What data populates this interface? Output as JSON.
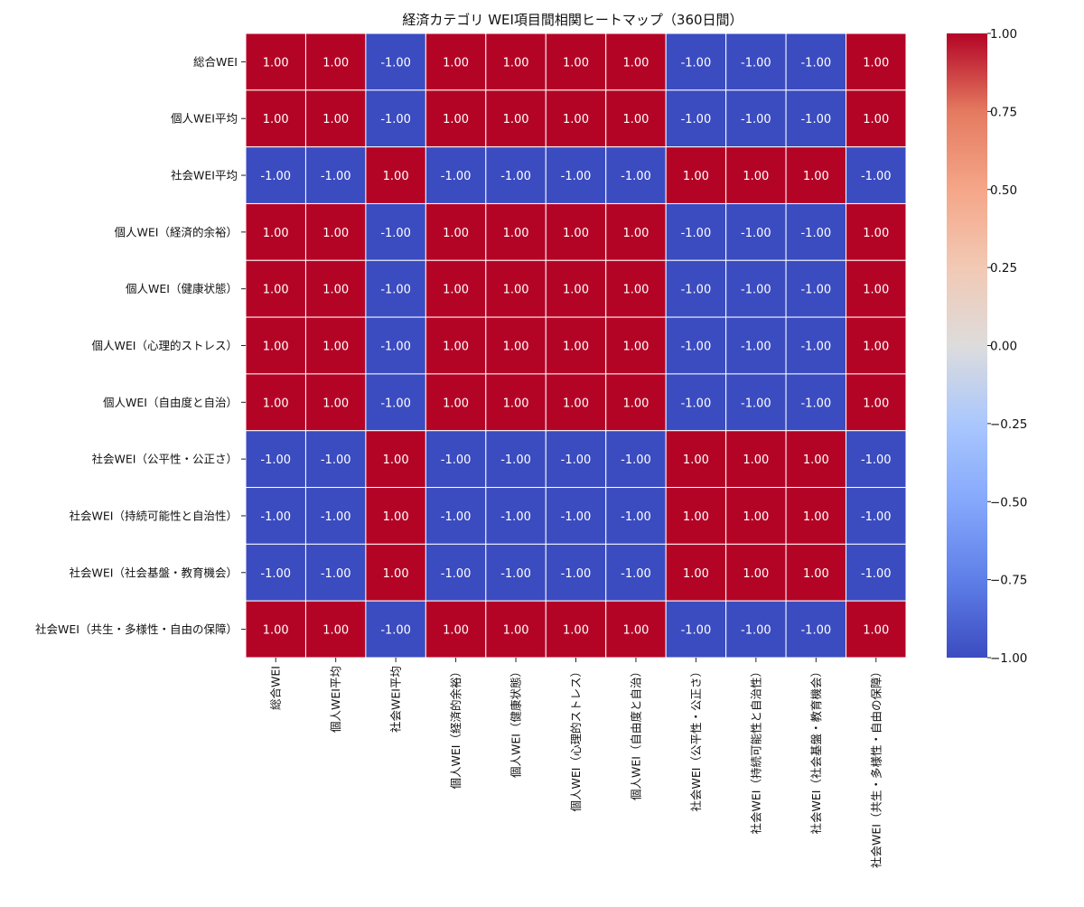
{
  "chart_data": {
    "type": "heatmap",
    "title": "経済カテゴリ WEI項目間相関ヒートマップ（360日間）",
    "row_labels": [
      "総合WEI",
      "個人WEI平均",
      "社会WEI平均",
      "個人WEI（経済的余裕）",
      "個人WEI（健康状態）",
      "個人WEI（心理的ストレス）",
      "個人WEI（自由度と自治）",
      "社会WEI（公平性・公正さ）",
      "社会WEI（持続可能性と自治性）",
      "社会WEI（社会基盤・教育機会）",
      "社会WEI（共生・多様性・自由の保障）"
    ],
    "col_labels": [
      "総合WEI",
      "個人WEI平均",
      "社会WEI平均",
      "個人WEI（経済的余裕）",
      "個人WEI（健康状態）",
      "個人WEI（心理的ストレス）",
      "個人WEI（自由度と自治）",
      "社会WEI（公平性・公正さ）",
      "社会WEI（持続可能性と自治性）",
      "社会WEI（社会基盤・教育機会）",
      "社会WEI（共生・多様性・自由の保障）"
    ],
    "values": [
      [
        1,
        1,
        -1,
        1,
        1,
        1,
        1,
        -1,
        -1,
        -1,
        1
      ],
      [
        1,
        1,
        -1,
        1,
        1,
        1,
        1,
        -1,
        -1,
        -1,
        1
      ],
      [
        -1,
        -1,
        1,
        -1,
        -1,
        -1,
        -1,
        1,
        1,
        1,
        -1
      ],
      [
        1,
        1,
        -1,
        1,
        1,
        1,
        1,
        -1,
        -1,
        -1,
        1
      ],
      [
        1,
        1,
        -1,
        1,
        1,
        1,
        1,
        -1,
        -1,
        -1,
        1
      ],
      [
        1,
        1,
        -1,
        1,
        1,
        1,
        1,
        -1,
        -1,
        -1,
        1
      ],
      [
        1,
        1,
        -1,
        1,
        1,
        1,
        1,
        -1,
        -1,
        -1,
        1
      ],
      [
        -1,
        -1,
        1,
        -1,
        -1,
        -1,
        -1,
        1,
        1,
        1,
        -1
      ],
      [
        -1,
        -1,
        1,
        -1,
        -1,
        -1,
        -1,
        1,
        1,
        1,
        -1
      ],
      [
        -1,
        -1,
        1,
        -1,
        -1,
        -1,
        -1,
        1,
        1,
        1,
        -1
      ],
      [
        1,
        1,
        -1,
        1,
        1,
        1,
        1,
        -1,
        -1,
        -1,
        1
      ]
    ],
    "value_format_decimals": 2,
    "colormap": "coolwarm",
    "colors": {
      "min": "#3b4cc0",
      "mid": "#dddddd",
      "max": "#b40426",
      "cell_border": "#ffffff"
    },
    "vmin": -1.0,
    "vmax": 1.0,
    "colorbar_ticks": [
      "1.00",
      "0.75",
      "0.50",
      "0.25",
      "0.00",
      "−0.25",
      "−0.50",
      "−0.75",
      "−1.00"
    ],
    "colorbar_values": [
      1.0,
      0.75,
      0.5,
      0.25,
      0.0,
      -0.25,
      -0.5,
      -0.75,
      -1.0
    ],
    "colorbar_placement": "right",
    "grid": false,
    "xlabel": "",
    "ylabel": ""
  }
}
